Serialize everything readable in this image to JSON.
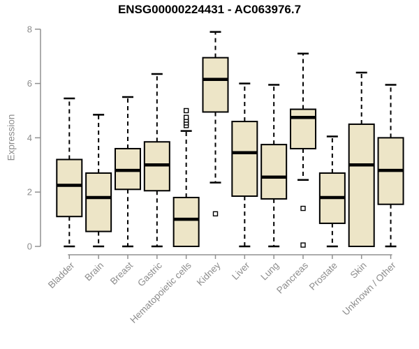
{
  "chart_data": {
    "type": "boxplot",
    "title": "ENSG00000224431 - AC063976.7",
    "ylabel": "Expression",
    "xlabel": "",
    "ylim": [
      0,
      8
    ],
    "yticks": [
      0,
      2,
      4,
      6,
      8
    ],
    "grid": "off",
    "legend": "none",
    "x_label_rotation_deg": 45,
    "categories": [
      "Bladder",
      "Brain",
      "Breast",
      "Gastric",
      "Hematopoietic cells",
      "Kidney",
      "Liver",
      "Lung",
      "Pancreas",
      "Prostate",
      "Skin",
      "Unknown / Other"
    ],
    "series": [
      {
        "name": "Bladder",
        "whisker_low": 0,
        "q1": 1.1,
        "median": 2.25,
        "q3": 3.2,
        "whisker_high": 5.45,
        "outliers": []
      },
      {
        "name": "Brain",
        "whisker_low": 0,
        "q1": 0.55,
        "median": 1.8,
        "q3": 2.7,
        "whisker_high": 4.85,
        "outliers": []
      },
      {
        "name": "Breast",
        "whisker_low": 0,
        "q1": 2.1,
        "median": 2.8,
        "q3": 3.6,
        "whisker_high": 5.5,
        "outliers": []
      },
      {
        "name": "Gastric",
        "whisker_low": 0,
        "q1": 2.05,
        "median": 3.0,
        "q3": 3.85,
        "whisker_high": 6.35,
        "outliers": []
      },
      {
        "name": "Hematopoietic cells",
        "whisker_low": 0,
        "q1": 0,
        "median": 1.0,
        "q3": 1.8,
        "whisker_high": 4.25,
        "outliers": [
          4.45,
          4.55,
          4.65,
          4.75,
          5.0
        ]
      },
      {
        "name": "Kidney",
        "whisker_low": 2.35,
        "q1": 4.95,
        "median": 6.15,
        "q3": 6.95,
        "whisker_high": 7.9,
        "outliers": [
          1.2
        ]
      },
      {
        "name": "Liver",
        "whisker_low": 0,
        "q1": 1.85,
        "median": 3.45,
        "q3": 4.6,
        "whisker_high": 6.0,
        "outliers": []
      },
      {
        "name": "Lung",
        "whisker_low": 0,
        "q1": 1.75,
        "median": 2.55,
        "q3": 3.75,
        "whisker_high": 5.95,
        "outliers": []
      },
      {
        "name": "Pancreas",
        "whisker_low": 2.45,
        "q1": 3.6,
        "median": 4.75,
        "q3": 5.05,
        "whisker_high": 7.1,
        "outliers": [
          1.4,
          0.05
        ]
      },
      {
        "name": "Prostate",
        "whisker_low": 0,
        "q1": 0.85,
        "median": 1.8,
        "q3": 2.7,
        "whisker_high": 4.05,
        "outliers": []
      },
      {
        "name": "Skin",
        "whisker_low": 0,
        "q1": 0,
        "median": 3.0,
        "q3": 4.5,
        "whisker_high": 6.4,
        "outliers": []
      },
      {
        "name": "Unknown / Other",
        "whisker_low": 0,
        "q1": 1.55,
        "median": 2.8,
        "q3": 4.0,
        "whisker_high": 5.95,
        "outliers": []
      }
    ],
    "colors": {
      "box_fill": "#EDE5C7",
      "box_border": "#000000",
      "median": "#000000",
      "whisker": "#000000",
      "outlier_border": "#000000",
      "axis_line": "#909090",
      "axis_text": "#8C8C8C",
      "title_text": "#000000",
      "background": "#FFFFFF"
    }
  }
}
